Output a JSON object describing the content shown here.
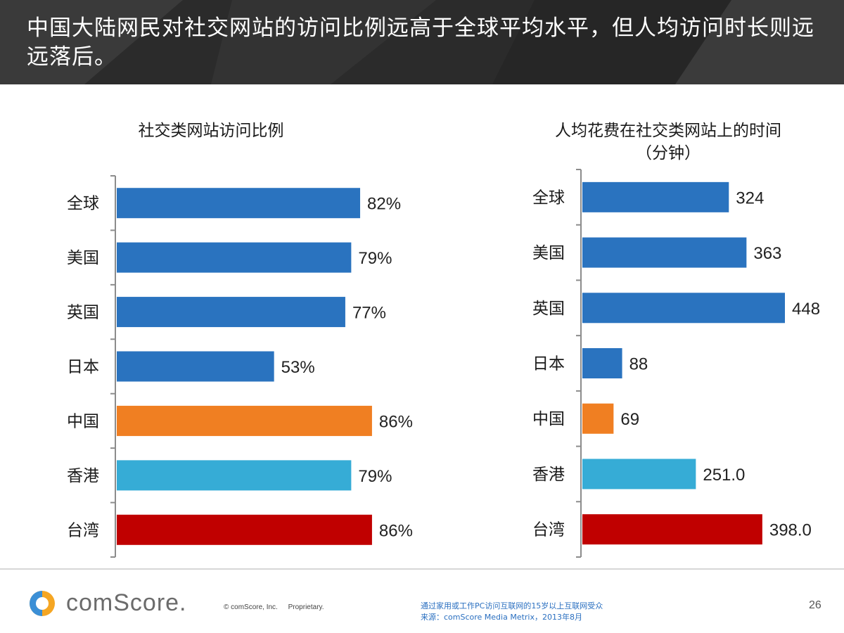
{
  "header": {
    "title": "中国大陆网民对社交网站的访问比例远高于全球平均水平，但人均访问时长则远远落后。"
  },
  "colors": {
    "header_bg": "#2d2d2d",
    "blue": "#2a73bf",
    "orange": "#f07f22",
    "light_blue": "#36acd6",
    "red": "#c00000",
    "axis": "#8c8c8c",
    "note": "#2a6fc0"
  },
  "chart_data": [
    {
      "type": "bar",
      "orientation": "horizontal",
      "title": "社交类网站访问比例",
      "categories": [
        "全球",
        "美国",
        "英国",
        "日本",
        "中国",
        "香港",
        "台湾"
      ],
      "values": [
        82,
        79,
        77,
        53,
        86,
        79,
        86
      ],
      "labels": [
        "82%",
        "79%",
        "77%",
        "53%",
        "86%",
        "79%",
        "86%"
      ],
      "bar_colors": [
        "#2a73bf",
        "#2a73bf",
        "#2a73bf",
        "#2a73bf",
        "#f07f22",
        "#36acd6",
        "#c00000"
      ],
      "unit": "%",
      "xlim": [
        0,
        100
      ]
    },
    {
      "type": "bar",
      "orientation": "horizontal",
      "title": "人均花费在社交类网站上的时间",
      "subtitle": "（分钟）",
      "categories": [
        "全球",
        "美国",
        "英国",
        "日本",
        "中国",
        "香港",
        "台湾"
      ],
      "values": [
        324,
        363,
        448,
        88,
        69,
        251.0,
        398.0
      ],
      "labels": [
        "324",
        "363",
        "448",
        "88",
        "69",
        "251.0",
        "398.0"
      ],
      "bar_colors": [
        "#2a73bf",
        "#2a73bf",
        "#2a73bf",
        "#2a73bf",
        "#f07f22",
        "#36acd6",
        "#c00000"
      ],
      "unit": "分钟",
      "xlim": [
        0,
        448
      ]
    }
  ],
  "footer": {
    "logo_text": "comScore.",
    "copyright": "© comScore, Inc.",
    "proprietary": "Proprietary.",
    "note_line1": "通过家用或工作PC访问互联网的15岁以上互联网受众",
    "note_line2": "来源：comScore Media Metrix，2013年8月",
    "page_number": "26"
  }
}
